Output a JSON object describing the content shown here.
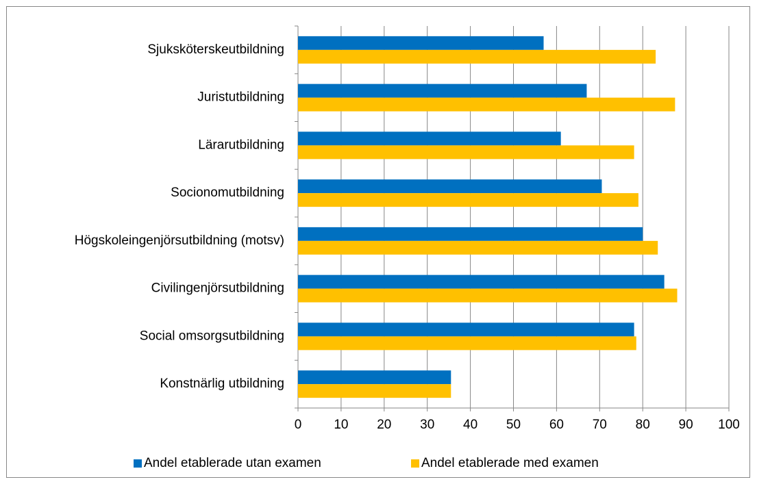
{
  "chart_data": {
    "type": "barh",
    "categories": [
      "Sjuksköterskeutbildning",
      "Juristutbildning",
      "Lärarutbildning",
      "Socionomutbildning",
      "Högskoleingenjörsutbildning (motsv)",
      "Civilingenjörsutbildning",
      "Social omsorgsutbildning",
      "Konstnärlig utbildning"
    ],
    "series": [
      {
        "name": "Andel etablerade utan examen",
        "color": "#0070c0",
        "values": [
          57,
          67,
          61,
          70.5,
          80,
          85,
          78,
          35.5
        ]
      },
      {
        "name": "Andel etablerade med examen",
        "color": "#ffc000",
        "values": [
          83,
          87.5,
          78,
          79,
          83.5,
          88,
          78.5,
          35.5
        ]
      }
    ],
    "xlim": [
      0,
      100
    ],
    "xticks": [
      0,
      10,
      20,
      30,
      40,
      50,
      60,
      70,
      80,
      90,
      100
    ],
    "grid": true,
    "legend": "bottom"
  }
}
